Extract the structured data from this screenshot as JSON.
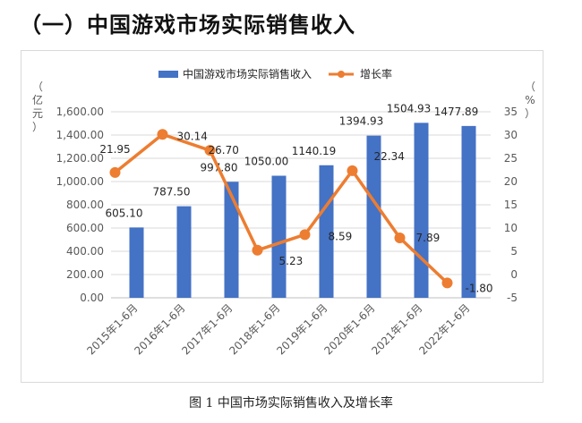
{
  "heading": "（一）中国游戏市场实际销售收入",
  "caption": "图 1 中国市场实际销售收入及增长率",
  "colors": {
    "bar": "#4472C4",
    "line": "#ED7D31",
    "grid": "#d9d9d9",
    "axis": "#595959"
  },
  "chart_data": {
    "type": "bar",
    "categories": [
      "2015年1-6月",
      "2016年1-6月",
      "2017年1-6月",
      "2018年1-6月",
      "2019年1-6月",
      "2020年1-6月",
      "2021年1-6月",
      "2022年1-6月"
    ],
    "series": [
      {
        "name": "中国游戏市场实际销售收入",
        "type": "bar",
        "axis": "left",
        "values": [
          605.1,
          787.5,
          997.8,
          1050.0,
          1140.19,
          1394.93,
          1504.93,
          1477.89
        ],
        "labels": [
          "605.10",
          "787.50",
          "997.80",
          "1050.00",
          "1140.19",
          "1394.93",
          "1504.93",
          "1477.89"
        ]
      },
      {
        "name": "增长率",
        "type": "line",
        "axis": "right",
        "values": [
          21.95,
          30.14,
          26.7,
          5.23,
          8.59,
          22.34,
          7.89,
          -1.8
        ],
        "labels": [
          "21.95",
          "30.14",
          "26.70",
          "5.23",
          "8.59",
          "22.34",
          "7.89",
          "-1.80"
        ]
      }
    ],
    "left_axis": {
      "unit": "（亿元）",
      "ylim": [
        0,
        1600
      ],
      "ticks": [
        "0.00",
        "200.00",
        "400.00",
        "600.00",
        "800.00",
        "1,000.00",
        "1,200.00",
        "1,400.00",
        "1,600.00"
      ]
    },
    "right_axis": {
      "unit": "（%）",
      "ylim": [
        -5,
        35
      ],
      "ticks": [
        "-5",
        "0",
        "5",
        "10",
        "15",
        "20",
        "25",
        "30",
        "35"
      ]
    },
    "grid": true,
    "legend": "top-center"
  }
}
